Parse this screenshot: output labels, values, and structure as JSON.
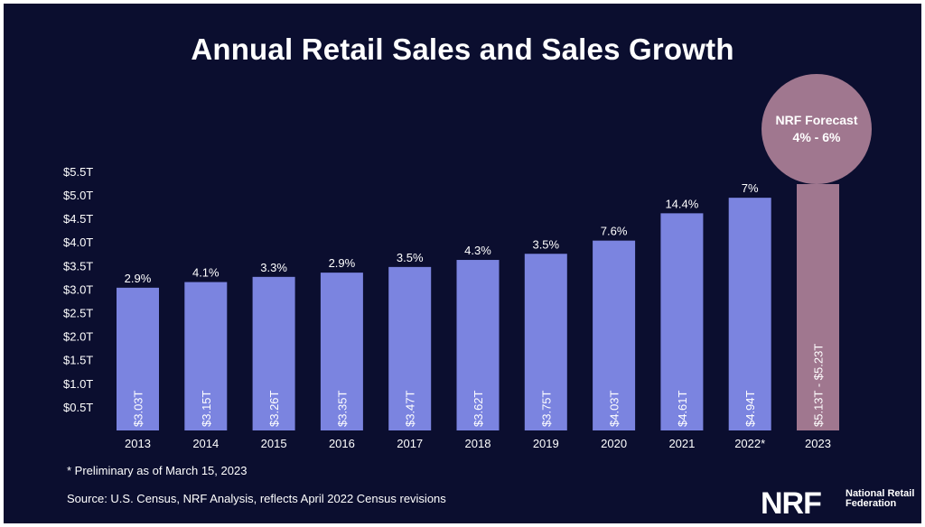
{
  "title": "Annual Retail Sales and Sales Growth",
  "footnote": "* Preliminary as of March 15, 2023",
  "source": "Source: U.S. Census, NRF Analysis, reflects April 2022 Census revisions",
  "forecast": {
    "line1": "NRF Forecast",
    "line2": "4% - 6%"
  },
  "logo": {
    "mark": "NRF",
    "name": "National Retail Federation"
  },
  "colors": {
    "background": "#0b0e2f",
    "bar": "#7b84e0",
    "forecast_bar": "#a0778f",
    "text": "#ffffff"
  },
  "chart_data": {
    "type": "bar",
    "title": "Annual Retail Sales and Sales Growth",
    "categories": [
      "2013",
      "2014",
      "2015",
      "2016",
      "2017",
      "2018",
      "2019",
      "2020",
      "2021",
      "2022*",
      "2023"
    ],
    "values": [
      3.03,
      3.15,
      3.26,
      3.35,
      3.47,
      3.62,
      3.75,
      4.03,
      4.61,
      4.94,
      5.23
    ],
    "value_labels": [
      "$3.03T",
      "$3.15T",
      "$3.26T",
      "$3.35T",
      "$3.47T",
      "$3.62T",
      "$3.75T",
      "$4.03T",
      "$4.61T",
      "$4.94T",
      "$5.13T - $5.23T"
    ],
    "growth_labels": [
      "2.9%",
      "4.1%",
      "3.3%",
      "2.9%",
      "3.5%",
      "4.3%",
      "3.5%",
      "7.6%",
      "14.4%",
      "7%",
      ""
    ],
    "forecast_range": [
      5.13,
      5.23
    ],
    "yticks": [
      "$0.5T",
      "$1.0T",
      "$1.5T",
      "$2.0T",
      "$2.5T",
      "$3.0T",
      "$3.5T",
      "$4.0T",
      "$4.5T",
      "$5.0T",
      "$5.5T"
    ],
    "ytick_values": [
      0.5,
      1.0,
      1.5,
      2.0,
      2.5,
      3.0,
      3.5,
      4.0,
      4.5,
      5.0,
      5.5
    ],
    "ylim": [
      0,
      5.5
    ],
    "xlabel": "",
    "ylabel": "",
    "grid": false,
    "legend": "none"
  }
}
